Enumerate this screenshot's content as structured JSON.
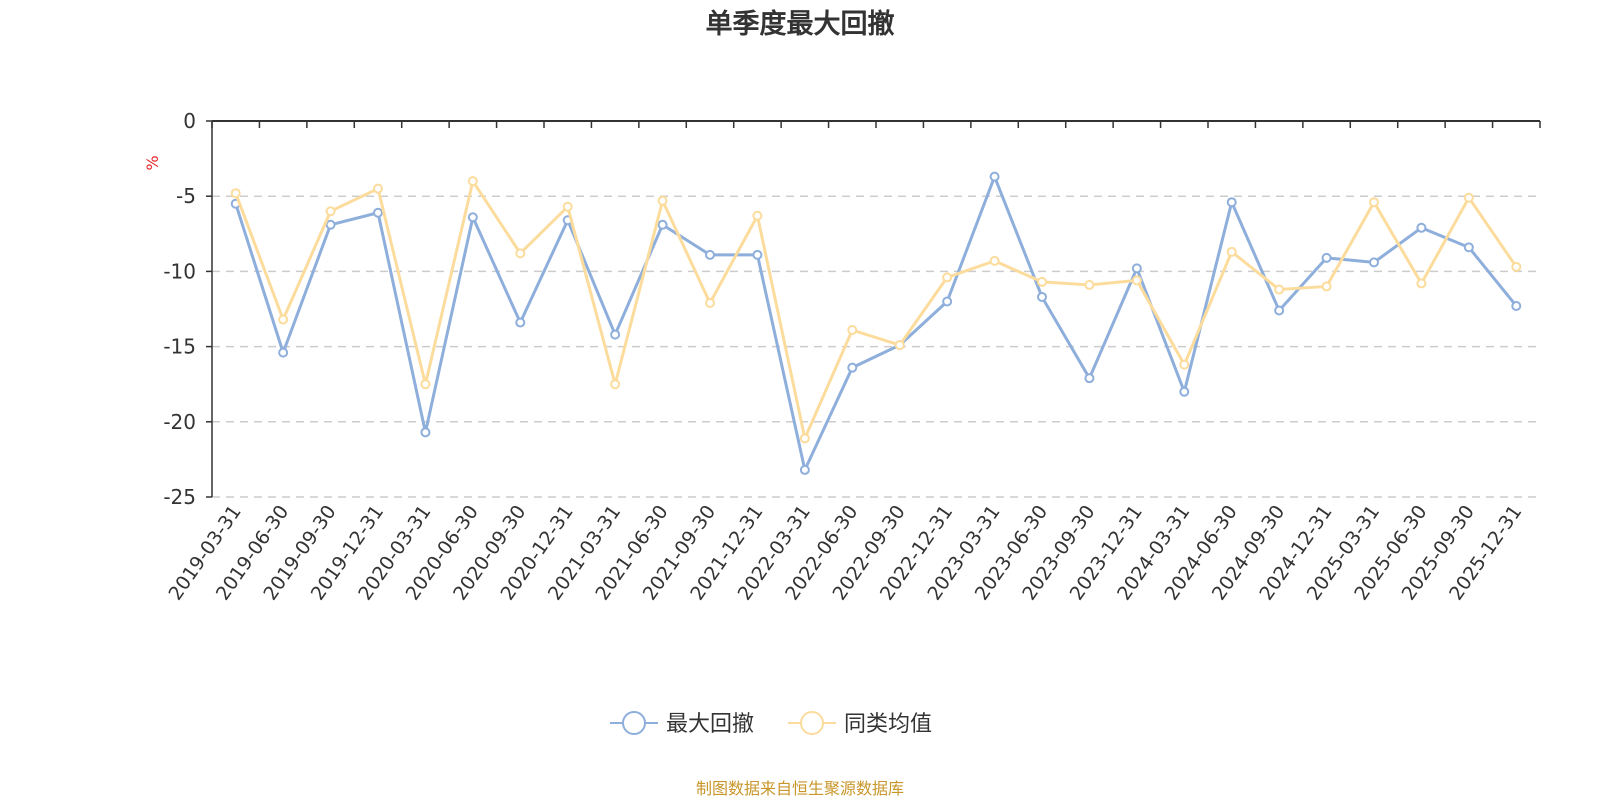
{
  "chart_data": {
    "type": "line",
    "title": "单季度最大回撤",
    "ylabel": "%",
    "ylim": [
      -25,
      0
    ],
    "yticks": [
      0,
      -5,
      -10,
      -15,
      -20,
      -25
    ],
    "grid": true,
    "legend_position": "bottom",
    "categories": [
      "2019-03-31",
      "2019-06-30",
      "2019-09-30",
      "2019-12-31",
      "2020-03-31",
      "2020-06-30",
      "2020-09-30",
      "2020-12-31",
      "2021-03-31",
      "2021-06-30",
      "2021-09-30",
      "2021-12-31",
      "2022-03-31",
      "2022-06-30",
      "2022-09-30",
      "2022-12-31",
      "2023-03-31",
      "2023-06-30",
      "2023-09-30",
      "2023-12-31",
      "2024-03-31",
      "2024-06-30",
      "2024-09-30",
      "2024-12-31",
      "2025-03-31",
      "2025-06-30",
      "2025-09-30",
      "2025-12-31"
    ],
    "series": [
      {
        "name": "最大回撤",
        "color": "#8eaedb",
        "values": [
          -5.5,
          -15.4,
          -6.9,
          -6.1,
          -20.7,
          -6.4,
          -13.4,
          -6.6,
          -14.2,
          -6.9,
          -8.9,
          -8.9,
          -23.2,
          -16.4,
          -14.9,
          -12.0,
          -3.7,
          -11.7,
          -17.1,
          -9.8,
          -18.0,
          -5.4,
          -12.6,
          -9.1,
          -9.4,
          -7.1,
          -8.4,
          -12.3
        ]
      },
      {
        "name": "同类均值",
        "color": "#fcdc9c",
        "values": [
          -4.8,
          -13.2,
          -6.0,
          -4.5,
          -17.5,
          -4.0,
          -8.8,
          -5.7,
          -17.5,
          -5.3,
          -12.1,
          -6.3,
          -21.1,
          -13.9,
          -14.9,
          -10.4,
          -9.3,
          -10.7,
          -10.9,
          -10.6,
          -16.2,
          -8.7,
          -11.2,
          -11.0,
          -5.4,
          -10.8,
          -5.1,
          -9.7
        ]
      }
    ],
    "source": "制图数据来自恒生聚源数据库"
  }
}
